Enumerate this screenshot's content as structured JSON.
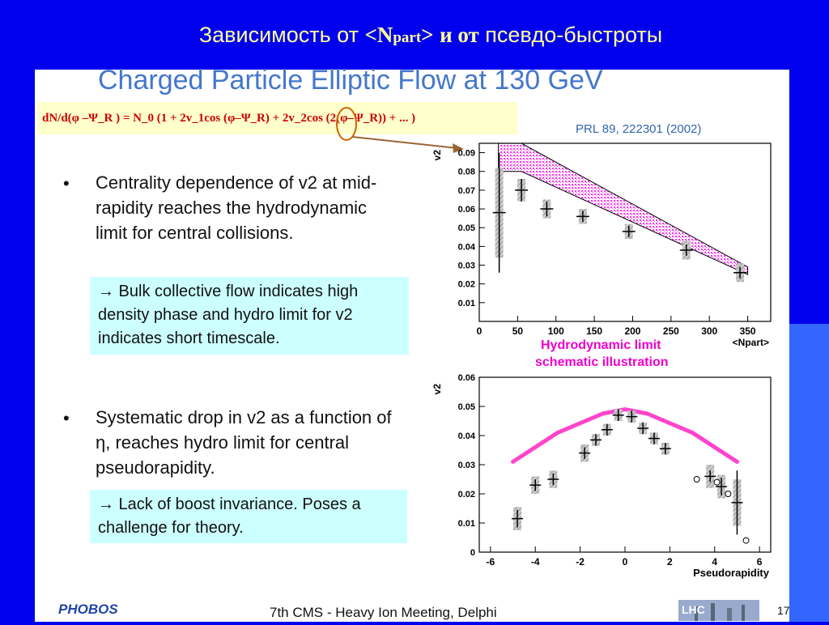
{
  "slide": {
    "title_part1": "Зависимость от ",
    "title_n": "<N",
    "title_sub": "part",
    "title_close": ">",
    "title_part2": "и от",
    "title_part3": " псевдо-быстроты"
  },
  "paper": {
    "title": "Charged Particle Elliptic Flow at 130 GeV",
    "formula": "dN/d(φ –Ψ_R ) = N_0 (1 + 2v_1cos (φ–Ψ_R) + 2v_2cos (2(φ–Ψ_R)) + ... )",
    "reference": "PRL 89, 222301 (2002)"
  },
  "bullets": [
    {
      "marker": "•",
      "text": "Centrality dependence of v2 at mid-rapidity reaches the hydrodynamic limit for central collisions.",
      "callout": "→ Bulk collective flow indicates high density phase and hydro limit for v2 indicates short timescale."
    },
    {
      "marker": "•",
      "text": "Systematic drop in v2 as a function of η, reaches hydro limit for central pseudorapidity.",
      "callout": "→ Lack of boost invariance. Poses a challenge for theory."
    }
  ],
  "hydro_label_line1": "Hydrodynamic limit",
  "hydro_label_line2": "schematic illustration",
  "footer": {
    "meeting": "7th CMS - Heavy Ion Meeting, Delphi",
    "page": "17",
    "logo_left": "PHOBOS",
    "logo_right": "LHC"
  },
  "colors": {
    "background": "#0000ee",
    "title": "#ffff99",
    "paper_title": "#4477cc",
    "formula": "#cc0000",
    "callout_bg": "#ccffff",
    "hydro": "#ee00cc",
    "band": "#ff33ee"
  },
  "chart_data": [
    {
      "type": "scatter",
      "ylabel": "v2",
      "xlabel": "<Npart>",
      "xlim": [
        0,
        380
      ],
      "ylim": [
        0,
        0.095
      ],
      "xticks": [
        0,
        50,
        100,
        150,
        200,
        250,
        300,
        350
      ],
      "yticks": [
        0.01,
        0.02,
        0.03,
        0.04,
        0.05,
        0.06,
        0.07,
        0.08,
        0.09
      ],
      "tick_labels_x": [
        "0",
        "50",
        "100",
        "150",
        "200",
        "250",
        "300",
        "350"
      ],
      "tick_labels_y": [
        "0.01",
        "0.02",
        "0.03",
        "0.04",
        "0.05",
        "0.06",
        "0.07",
        "0.08",
        "0.09"
      ],
      "points": [
        {
          "x": 26,
          "y": 0.058,
          "yerr": 0.032,
          "sys": 0.024
        },
        {
          "x": 55,
          "y": 0.07,
          "yerr": 0.006,
          "sys": 0.006
        },
        {
          "x": 88,
          "y": 0.06,
          "yerr": 0.004,
          "sys": 0.005
        },
        {
          "x": 135,
          "y": 0.056,
          "yerr": 0.003,
          "sys": 0.004
        },
        {
          "x": 195,
          "y": 0.048,
          "yerr": 0.003,
          "sys": 0.004
        },
        {
          "x": 270,
          "y": 0.038,
          "yerr": 0.003,
          "sys": 0.005
        },
        {
          "x": 340,
          "y": 0.026,
          "yerr": 0.003,
          "sys": 0.005
        }
      ],
      "band_upper": [
        [
          25,
          0.095
        ],
        [
          55,
          0.095
        ],
        [
          350,
          0.029
        ]
      ],
      "band_lower": [
        [
          25,
          0.08
        ],
        [
          55,
          0.08
        ],
        [
          350,
          0.025
        ]
      ]
    },
    {
      "type": "scatter",
      "ylabel": "v2",
      "xlabel": "Pseudorapidity",
      "xlim": [
        -6.5,
        6.5
      ],
      "ylim": [
        0,
        0.06
      ],
      "xticks": [
        -6,
        -4,
        -2,
        0,
        2,
        4,
        6
      ],
      "yticks": [
        0,
        0.01,
        0.02,
        0.03,
        0.04,
        0.05,
        0.06
      ],
      "tick_labels_x": [
        "-6",
        "-4",
        "-2",
        "0",
        "2",
        "4",
        "6"
      ],
      "tick_labels_y": [
        "0",
        "0.01",
        "0.02",
        "0.03",
        "0.04",
        "0.05",
        "0.06"
      ],
      "points": [
        {
          "x": -4.8,
          "y": 0.0115,
          "yerr": 0.003,
          "sys": 0.004
        },
        {
          "x": -4.0,
          "y": 0.023,
          "yerr": 0.002,
          "sys": 0.003
        },
        {
          "x": -3.2,
          "y": 0.025,
          "yerr": 0.002,
          "sys": 0.003
        },
        {
          "x": -1.8,
          "y": 0.034,
          "yerr": 0.002,
          "sys": 0.003
        },
        {
          "x": -1.3,
          "y": 0.0385,
          "yerr": 0.002,
          "sys": 0.002
        },
        {
          "x": -0.8,
          "y": 0.042,
          "yerr": 0.002,
          "sys": 0.002
        },
        {
          "x": -0.3,
          "y": 0.047,
          "yerr": 0.002,
          "sys": 0.002
        },
        {
          "x": 0.3,
          "y": 0.0465,
          "yerr": 0.002,
          "sys": 0.002
        },
        {
          "x": 0.8,
          "y": 0.0425,
          "yerr": 0.002,
          "sys": 0.002
        },
        {
          "x": 1.3,
          "y": 0.039,
          "yerr": 0.002,
          "sys": 0.002
        },
        {
          "x": 1.8,
          "y": 0.0355,
          "yerr": 0.002,
          "sys": 0.002
        },
        {
          "x": 3.8,
          "y": 0.026,
          "yerr": 0.002,
          "sys": 0.004
        },
        {
          "x": 4.3,
          "y": 0.0225,
          "yerr": 0.003,
          "sys": 0.004
        },
        {
          "x": 5.0,
          "y": 0.017,
          "yerr": 0.011,
          "sys": 0.008
        }
      ],
      "open_points": [
        {
          "x": 3.2,
          "y": 0.025
        },
        {
          "x": 4.1,
          "y": 0.024
        },
        {
          "x": 4.6,
          "y": 0.02
        },
        {
          "x": 5.4,
          "y": 0.004
        }
      ],
      "hydro_curve": [
        [
          -5.0,
          0.031
        ],
        [
          -3.0,
          0.041
        ],
        [
          -1.0,
          0.0475
        ],
        [
          0.0,
          0.049
        ],
        [
          1.0,
          0.0475
        ],
        [
          3.0,
          0.041
        ],
        [
          5.0,
          0.031
        ]
      ]
    }
  ]
}
